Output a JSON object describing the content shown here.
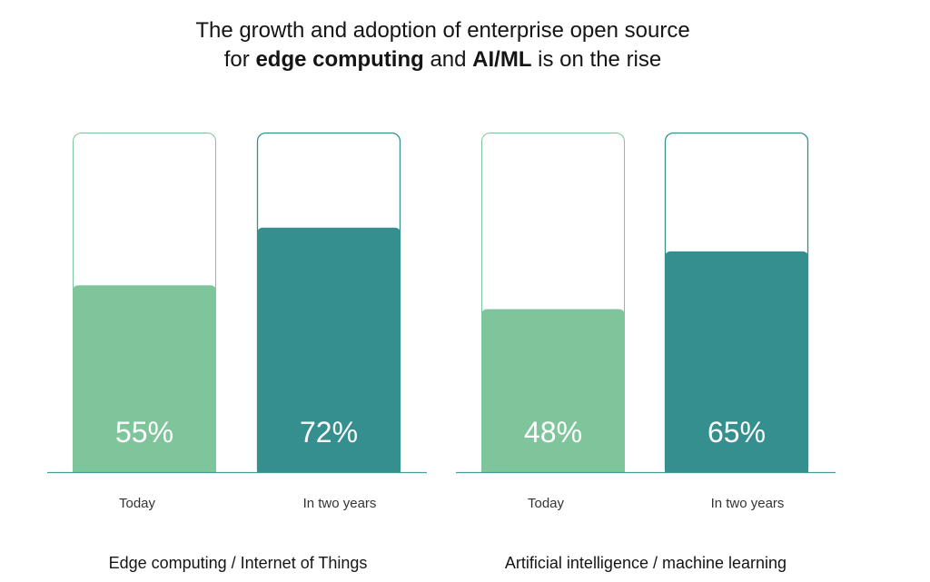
{
  "title": {
    "line1": "The growth and adoption of enterprise open source",
    "line2_prefix": "for ",
    "line2_bold1": "edge computing",
    "line2_mid": " and ",
    "line2_bold2": "AI/ML",
    "line2_suffix": " is on the rise"
  },
  "colors": {
    "today": "#7fc59c",
    "two_years": "#368f8f",
    "outline_today": "#7fc59c",
    "outline_two_years": "#368f8f",
    "baseline": "#4b9a9a"
  },
  "chart_data": [
    {
      "type": "bar",
      "title": "Edge computing / Internet of Things",
      "categories": [
        "Today",
        "In two years"
      ],
      "values": [
        55,
        72
      ],
      "value_labels": [
        "55%",
        "72%"
      ],
      "ylim": [
        0,
        100
      ]
    },
    {
      "type": "bar",
      "title": "Artificial intelligence / machine learning",
      "categories": [
        "Today",
        "In two years"
      ],
      "values": [
        48,
        65
      ],
      "value_labels": [
        "48%",
        "65%"
      ],
      "ylim": [
        0,
        100
      ]
    }
  ]
}
